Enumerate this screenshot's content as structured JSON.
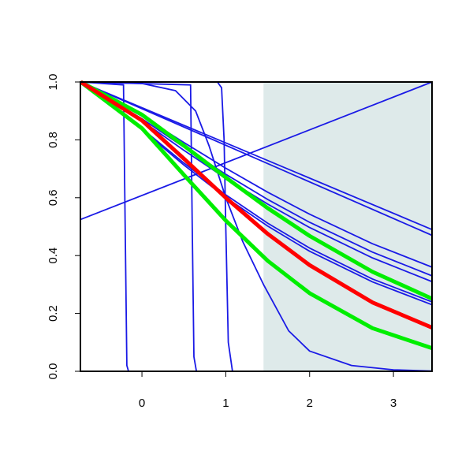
{
  "chart_data": {
    "type": "line",
    "xlim": [
      -0.734,
      3.46
    ],
    "ylim": [
      0,
      1
    ],
    "xticks": [
      0,
      1,
      2,
      3
    ],
    "yticks": [
      {
        "value": 0,
        "label": "0.0"
      },
      {
        "value": 0.2,
        "label": "0.2"
      },
      {
        "value": 0.4,
        "label": "0.4"
      },
      {
        "value": 0.6,
        "label": "0.6"
      },
      {
        "value": 0.8,
        "label": "0.8"
      },
      {
        "value": 1,
        "label": "1.0"
      }
    ],
    "shade": {
      "x": [
        1.45,
        3.46
      ],
      "color": "#deeaea"
    },
    "series": [
      {
        "color": "#1a1ae6",
        "x": [
          -0.73,
          3.46
        ],
        "values": [
          0.525,
          1.0
        ]
      },
      {
        "color": "#1a1ae6",
        "x": [
          -0.73,
          -0.22,
          -0.2,
          -0.18,
          -0.16,
          3.46
        ],
        "values": [
          1,
          0.99,
          0.5,
          0.02,
          0,
          0
        ]
      },
      {
        "color": "#1a1ae6",
        "x": [
          -0.73,
          0.58,
          0.6,
          0.62,
          0.65,
          3.46
        ],
        "values": [
          1,
          0.99,
          0.5,
          0.05,
          0,
          0
        ]
      },
      {
        "color": "#1a1ae6",
        "x": [
          -0.73,
          0.9,
          0.95,
          0.98,
          1.0,
          1.03,
          1.08,
          3.46
        ],
        "values": [
          1,
          1,
          0.98,
          0.8,
          0.5,
          0.1,
          0,
          0
        ]
      },
      {
        "color": "#1a1ae6",
        "x": [
          -0.73,
          0,
          0.4,
          0.64,
          0.8,
          1.0,
          1.2,
          1.45,
          1.75,
          2.0,
          2.5,
          3.0,
          3.46
        ],
        "values": [
          1,
          0.995,
          0.97,
          0.9,
          0.78,
          0.6,
          0.45,
          0.3,
          0.14,
          0.07,
          0.02,
          0.005,
          0.001
        ]
      },
      {
        "color": "#1a1ae6",
        "x": [
          -0.73,
          3.46
        ],
        "values": [
          1,
          0.49
        ]
      },
      {
        "color": "#1a1ae6",
        "x": [
          -0.73,
          3.46
        ],
        "values": [
          1,
          0.47
        ]
      },
      {
        "color": "#1a1ae6",
        "x": [
          -0.73,
          0,
          0.5,
          1,
          1.5,
          2,
          2.75,
          3.46
        ],
        "values": [
          1,
          0.882,
          0.791,
          0.702,
          0.619,
          0.543,
          0.441,
          0.36
        ]
      },
      {
        "color": "#1a1ae6",
        "x": [
          -0.73,
          0,
          0.5,
          1,
          1.5,
          2,
          2.75,
          3.46
        ],
        "values": [
          1,
          0.873,
          0.775,
          0.681,
          0.594,
          0.515,
          0.412,
          0.33
        ]
      },
      {
        "color": "#1a1ae6",
        "x": [
          -0.73,
          0,
          0.5,
          1,
          1.5,
          2,
          2.75,
          3.46
        ],
        "values": [
          1,
          0.866,
          0.764,
          0.667,
          0.578,
          0.497,
          0.392,
          0.31
        ]
      },
      {
        "color": "#1a1ae6",
        "x": [
          -0.73,
          0,
          0.5,
          1,
          1.5,
          2,
          2.75,
          3.46
        ],
        "values": [
          1,
          0.839,
          0.72,
          0.61,
          0.512,
          0.426,
          0.319,
          0.24
        ]
      },
      {
        "color": "#1a1ae6",
        "x": [
          -0.73,
          0,
          0.5,
          1,
          1.5,
          2,
          2.75,
          3.46
        ],
        "values": [
          1,
          0.835,
          0.713,
          0.601,
          0.502,
          0.415,
          0.309,
          0.23
        ]
      },
      {
        "color": "#00ee00",
        "x": [
          -0.73,
          0,
          0.5,
          1,
          1.5,
          2,
          2.75,
          3.46
        ],
        "values": [
          1,
          0.887,
          0.78,
          0.67,
          0.564,
          0.468,
          0.344,
          0.251
        ]
      },
      {
        "color": "#00ee00",
        "x": [
          -0.73,
          0,
          0.5,
          1,
          1.5,
          2,
          2.75,
          3.46
        ],
        "values": [
          1,
          0.84,
          0.679,
          0.521,
          0.382,
          0.27,
          0.149,
          0.08
        ]
      },
      {
        "color": "#ff0000",
        "x": [
          -0.73,
          0,
          0.5,
          1,
          1.5,
          2,
          2.75,
          3.46
        ],
        "values": [
          1,
          0.867,
          0.735,
          0.6,
          0.475,
          0.367,
          0.238,
          0.151
        ]
      }
    ]
  }
}
